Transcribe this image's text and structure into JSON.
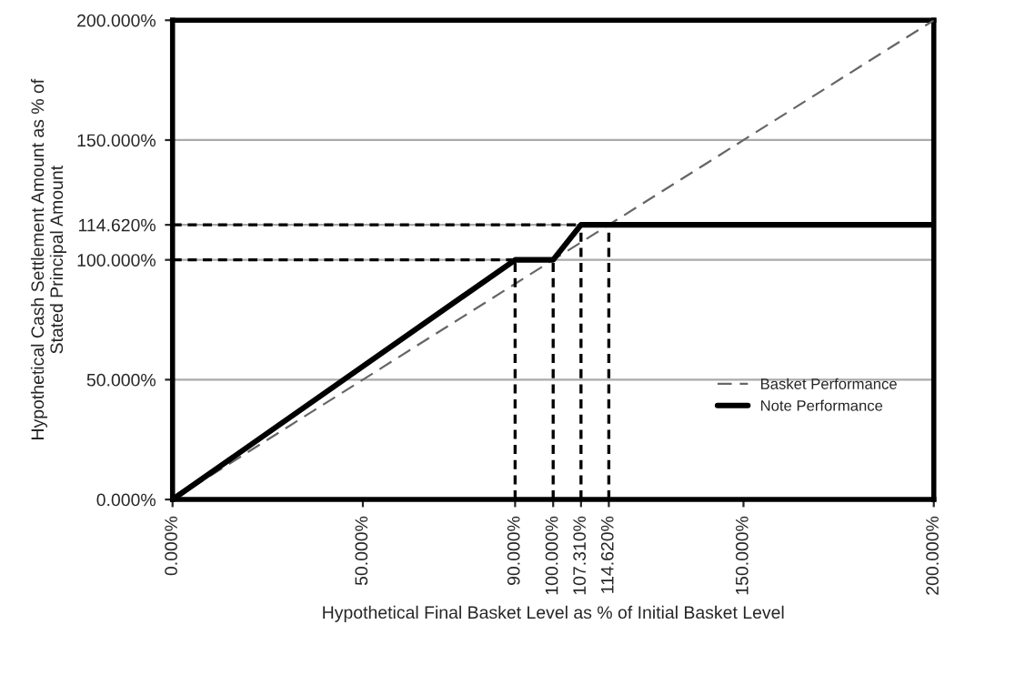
{
  "chart_data": {
    "type": "line",
    "xlabel": "Hypothetical Final Basket Level as % of Initial Basket Level",
    "ylabel": "Hypothetical Cash Settlement Amount as % of\nStated Principal Amount",
    "xlim": [
      0,
      200
    ],
    "ylim": [
      0,
      200
    ],
    "xticks": [
      {
        "value": 0,
        "label": "0.000%"
      },
      {
        "value": 50,
        "label": "50.000%"
      },
      {
        "value": 90,
        "label": "90.000%"
      },
      {
        "value": 100,
        "label": "100.000%"
      },
      {
        "value": 107.31,
        "label": "107.310%"
      },
      {
        "value": 114.62,
        "label": "114.620%"
      },
      {
        "value": 150,
        "label": "150.000%"
      },
      {
        "value": 200,
        "label": "200.000%"
      }
    ],
    "yticks": [
      {
        "value": 0,
        "label": "0.000%"
      },
      {
        "value": 50,
        "label": "50.000%"
      },
      {
        "value": 100,
        "label": "100.000%"
      },
      {
        "value": 114.62,
        "label": "114.620%"
      },
      {
        "value": 150,
        "label": "150.000%"
      },
      {
        "value": 200,
        "label": "200.000%"
      }
    ],
    "grid": "y",
    "legend": "bottom right",
    "series": [
      {
        "name": "Basket Performance",
        "color": "#666666",
        "line_style": "dashed",
        "x": [
          0,
          200
        ],
        "values": [
          0,
          200
        ]
      },
      {
        "name": "Note Performance",
        "color": "#000000",
        "line_style": "solid",
        "x": [
          0,
          90,
          100,
          107.31,
          200
        ],
        "values": [
          0,
          100,
          100,
          114.62,
          114.62
        ]
      },
      {
        "color": "#000000",
        "line_style": "dotted",
        "x": [
          0,
          100
        ],
        "values": [
          100,
          100
        ]
      },
      {
        "color": "#000000",
        "line_style": "dotted",
        "x": [
          0,
          114.62
        ],
        "values": [
          114.62,
          114.62
        ]
      },
      {
        "color": "#000000",
        "line_style": "dotted",
        "x": [
          90,
          90
        ],
        "values": [
          0,
          100
        ]
      },
      {
        "color": "#000000",
        "line_style": "dotted",
        "x": [
          100,
          100
        ],
        "values": [
          0,
          100
        ]
      },
      {
        "color": "#000000",
        "line_style": "dotted",
        "x": [
          107.31,
          107.31
        ],
        "values": [
          0,
          114.62
        ]
      },
      {
        "color": "#000000",
        "line_style": "dotted",
        "x": [
          114.62,
          114.62
        ],
        "values": [
          0,
          114.62
        ]
      }
    ]
  }
}
